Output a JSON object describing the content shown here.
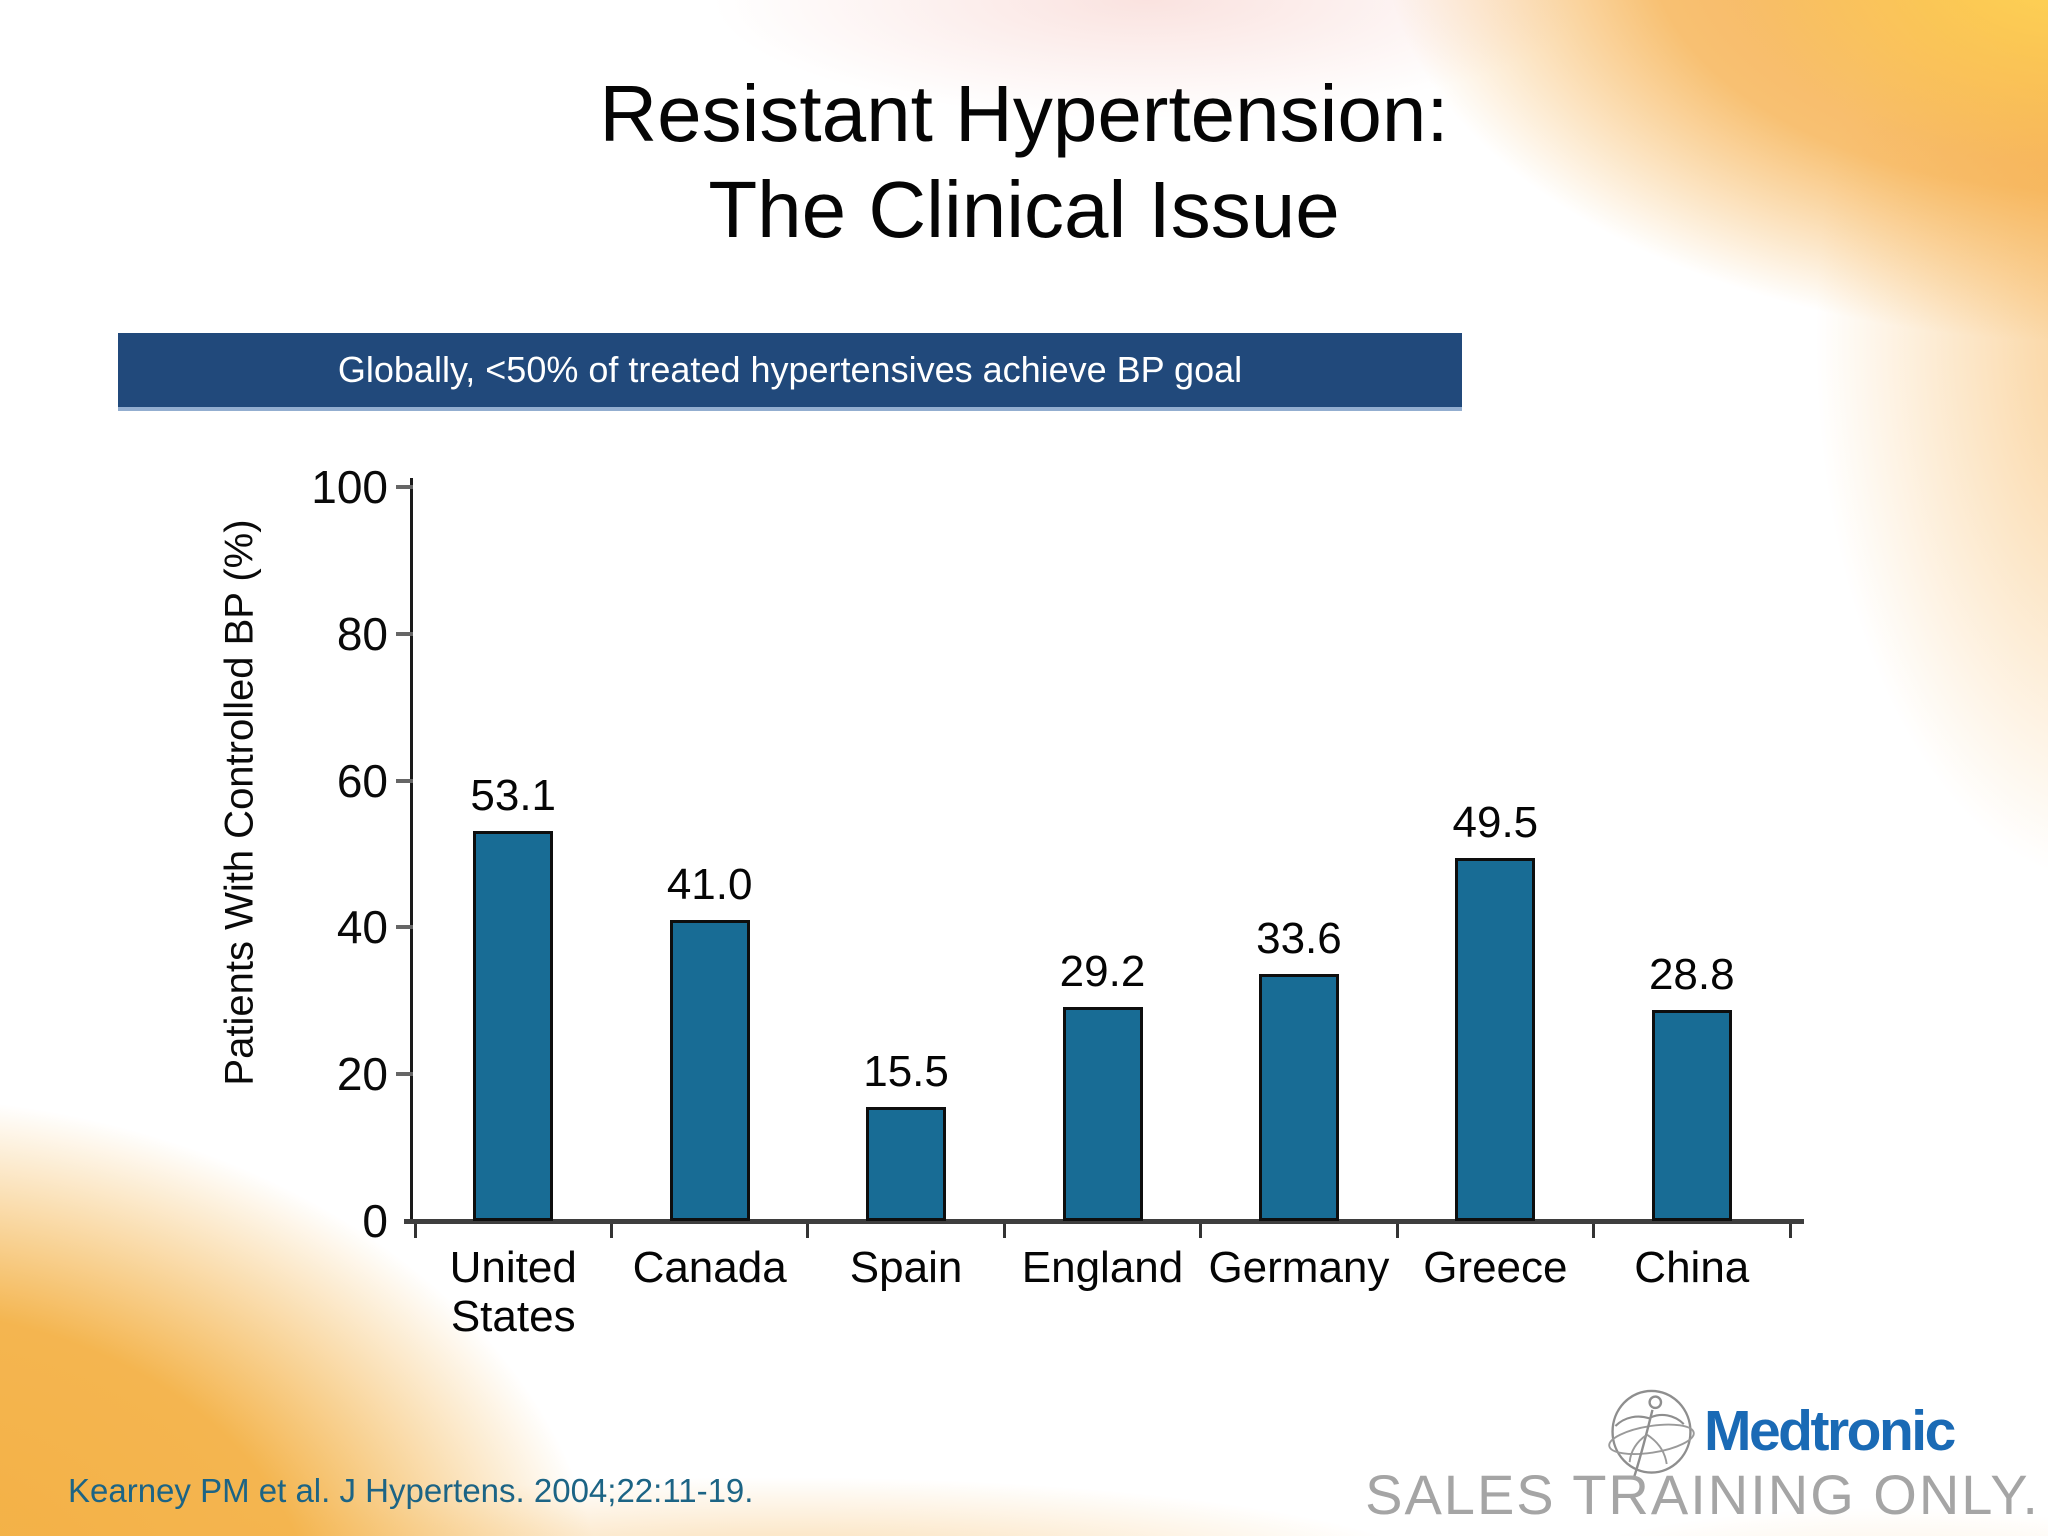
{
  "slide": {
    "title_line1": "Resistant Hypertension:",
    "title_line2": "The Clinical Issue",
    "banner": "Globally, <50% of treated hypertensives achieve BP goal",
    "citation": "Kearney PM et al. J Hypertens. 2004;22:11-19.",
    "watermark": "SALES TRAINING ONLY.",
    "logo_text": "Medtronic"
  },
  "chart_data": {
    "type": "bar",
    "title": "",
    "categories": [
      "United States",
      "Canada",
      "Spain",
      "England",
      "Germany",
      "Greece",
      "China"
    ],
    "values": [
      53.1,
      41.0,
      15.5,
      29.2,
      33.6,
      49.5,
      28.8
    ],
    "value_labels": [
      "53.1",
      "41.0",
      "15.5",
      "29.2",
      "33.6",
      "49.5",
      "28.8"
    ],
    "xlabel": "",
    "ylabel": "Patients With Controlled BP (%)",
    "ylim": [
      0,
      100
    ],
    "yticks": [
      0,
      20,
      40,
      60,
      80,
      100
    ],
    "grid": false,
    "legend": false,
    "bar_color": "#186C95"
  },
  "colors": {
    "banner_bg": "#21497B",
    "banner_text": "#FFFFFF",
    "bar": "#186C95",
    "citation_text": "#1C6485",
    "watermark_text": "#A5A5A5",
    "medtronic_blue": "#1A6AB5",
    "orange_accent": "#F5A83C",
    "gold_accent": "#F3AF41"
  }
}
